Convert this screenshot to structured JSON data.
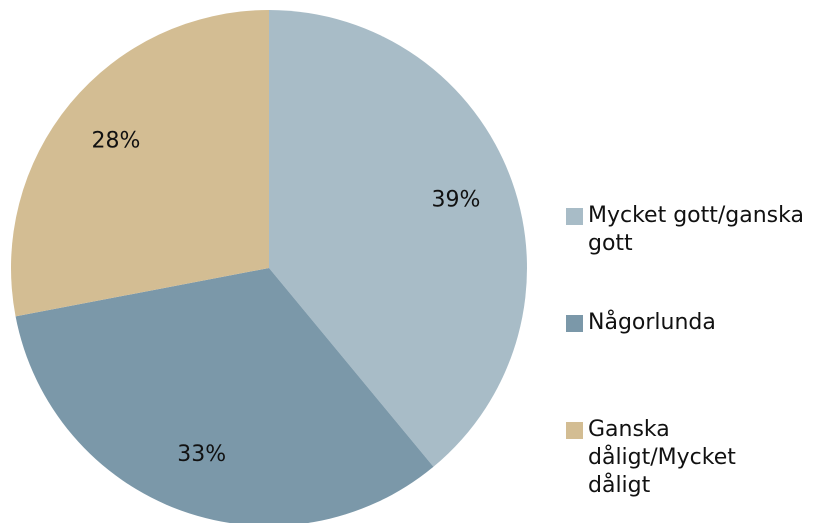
{
  "chart_data": {
    "type": "pie",
    "categories": [
      "Mycket gott/ganska gott",
      "Någorlunda",
      "Ganska dåligt/Mycket dåligt"
    ],
    "values": [
      39,
      33,
      28
    ],
    "value_labels": [
      "39%",
      "33%",
      "28%"
    ],
    "colors": [
      "#a8bcc7",
      "#7b98a9",
      "#d3bd93"
    ]
  }
}
